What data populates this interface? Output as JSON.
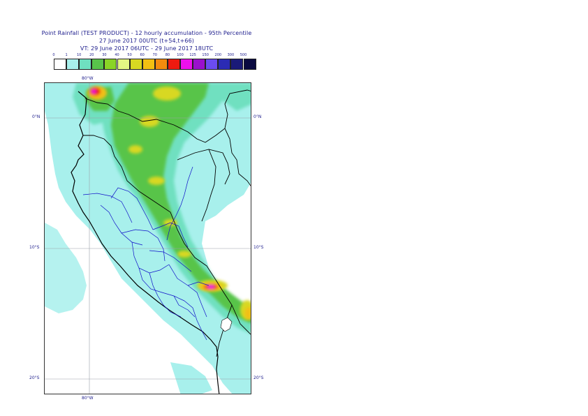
{
  "header": {
    "line1": "Point Rainfall (TEST PRODUCT) - 12 hourly accumulation - 95th Percentile",
    "line2": "27 June 2017 00UTC (t+54,t+66)",
    "line3": "VT: 29 June 2017 06UTC - 29 June 2017 18UTC"
  },
  "legend": {
    "ticks": [
      "0",
      "1",
      "10",
      "20",
      "30",
      "40",
      "50",
      "60",
      "70",
      "80",
      "100",
      "125",
      "150",
      "200",
      "300",
      "500"
    ],
    "colors": [
      "#ffffff",
      "#a8f0ec",
      "#6fe0c0",
      "#58c44a",
      "#8ad426",
      "#e4f884",
      "#d8d822",
      "#f2c012",
      "#f48b0e",
      "#ee1a10",
      "#ee10ee",
      "#9a10cc",
      "#6b4cf0",
      "#2b2bb4",
      "#1a1a78",
      "#0a0a40"
    ]
  },
  "map": {
    "lon_labels": {
      "top": "80°W",
      "bottom": "80°W"
    },
    "lat_labels": [
      {
        "left": "0°N",
        "right": "0°N"
      },
      {
        "left": "10°S",
        "right": "10°S"
      },
      {
        "left": "20°S",
        "right": "20°S"
      }
    ],
    "colors": {
      "ocean_light": "#a8f0ec",
      "teal": "#6fe0c0",
      "green": "#58c44a",
      "lime": "#8ad426",
      "yellow": "#d8d822",
      "orange": "#f2c012",
      "red": "#ee1a10",
      "magenta": "#ee10ee",
      "coast": "#000000",
      "admin": "#1010c8",
      "grid": "#9aa0a8"
    }
  }
}
